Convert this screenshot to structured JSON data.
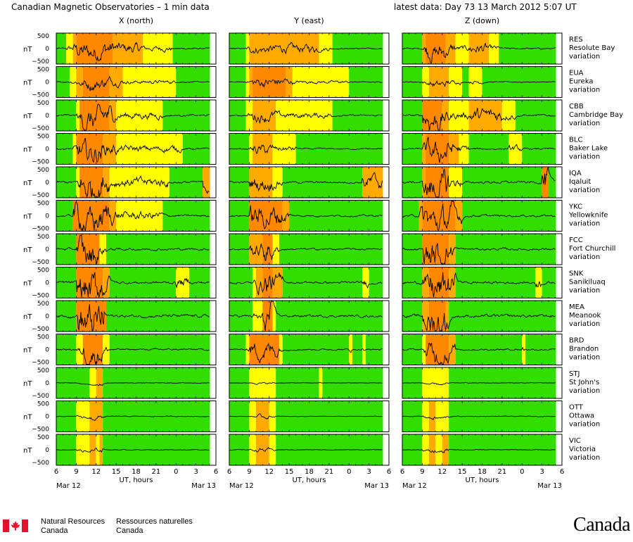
{
  "header": {
    "title": "Canadian Magnetic Observatories – 1 min data",
    "latest": "latest data: Day  73   13 March 2012  5:07 UT"
  },
  "chart_data": {
    "type": "line",
    "column_titles": [
      "X (north)",
      "Y (east)",
      "Z (down)"
    ],
    "ylabel": "nT",
    "y_ticks": [
      "500",
      "0",
      "−500"
    ],
    "x_ticks": [
      "6",
      "9",
      "12",
      "15",
      "18",
      "21",
      "0",
      "3",
      "6"
    ],
    "x_range_hours": [
      6,
      30
    ],
    "data_end_hour": 29.1,
    "xlabel": "UT, hours",
    "date_start": "Mar 12",
    "date_end": "Mar 13",
    "activity_colors": {
      "quiet": "#33dd00",
      "unsettled": "#ffff00",
      "active": "#ffaa00",
      "storm": "#ff8800"
    },
    "stations": [
      {
        "code": "RES",
        "name": "Resolute Bay",
        "suffix": "variation",
        "amp": 0.45,
        "x": [
          [
            6,
            "quiet"
          ],
          [
            7.5,
            "unsettled"
          ],
          [
            8.5,
            "active"
          ],
          [
            9,
            "storm"
          ],
          [
            14.5,
            "active"
          ],
          [
            19,
            "unsettled"
          ],
          [
            23.5,
            "quiet"
          ]
        ],
        "y": [
          [
            6,
            "quiet"
          ],
          [
            8.5,
            "unsettled"
          ],
          [
            9,
            "active"
          ],
          [
            19.5,
            "unsettled"
          ],
          [
            21.5,
            "quiet"
          ]
        ],
        "z": [
          [
            6,
            "quiet"
          ],
          [
            9,
            "active"
          ],
          [
            9.5,
            "storm"
          ],
          [
            12.5,
            "active"
          ],
          [
            14,
            "unsettled"
          ],
          [
            16,
            "active"
          ],
          [
            19,
            "unsettled"
          ],
          [
            20.5,
            "quiet"
          ]
        ]
      },
      {
        "code": "EUA",
        "name": "Eureka",
        "suffix": "variation",
        "amp": 0.3,
        "x": [
          [
            6,
            "quiet"
          ],
          [
            8,
            "unsettled"
          ],
          [
            9,
            "active"
          ],
          [
            10,
            "storm"
          ],
          [
            14,
            "active"
          ],
          [
            16,
            "unsettled"
          ],
          [
            24,
            "quiet"
          ]
        ],
        "y": [
          [
            6,
            "quiet"
          ],
          [
            8.5,
            "unsettled"
          ],
          [
            9,
            "active"
          ],
          [
            9.5,
            "storm"
          ],
          [
            14.5,
            "active"
          ],
          [
            15.5,
            "unsettled"
          ],
          [
            24,
            "quiet"
          ]
        ],
        "z": [
          [
            6,
            "quiet"
          ],
          [
            9,
            "unsettled"
          ],
          [
            10,
            "active"
          ],
          [
            13,
            "unsettled"
          ],
          [
            15,
            "quiet"
          ],
          [
            16,
            "unsettled"
          ],
          [
            18,
            "quiet"
          ]
        ]
      },
      {
        "code": "CBB",
        "name": "Cambridge Bay",
        "suffix": "variation",
        "amp": 0.6,
        "x": [
          [
            6,
            "quiet"
          ],
          [
            9,
            "unsettled"
          ],
          [
            9.5,
            "storm"
          ],
          [
            14,
            "active"
          ],
          [
            15,
            "unsettled"
          ],
          [
            22,
            "quiet"
          ]
        ],
        "y": [
          [
            6,
            "quiet"
          ],
          [
            8.5,
            "unsettled"
          ],
          [
            9.5,
            "active"
          ],
          [
            13,
            "unsettled"
          ],
          [
            21.5,
            "quiet"
          ]
        ],
        "z": [
          [
            6,
            "quiet"
          ],
          [
            9,
            "storm"
          ],
          [
            12,
            "active"
          ],
          [
            13,
            "unsettled"
          ],
          [
            16,
            "active"
          ],
          [
            21,
            "unsettled"
          ],
          [
            23,
            "quiet"
          ]
        ]
      },
      {
        "code": "BLC",
        "name": "Baker Lake",
        "suffix": "variation",
        "amp": 0.55,
        "x": [
          [
            6,
            "quiet"
          ],
          [
            8.5,
            "unsettled"
          ],
          [
            9,
            "storm"
          ],
          [
            13,
            "active"
          ],
          [
            15,
            "unsettled"
          ],
          [
            25,
            "quiet"
          ]
        ],
        "y": [
          [
            6,
            "quiet"
          ],
          [
            9,
            "unsettled"
          ],
          [
            9.5,
            "active"
          ],
          [
            12.5,
            "unsettled"
          ],
          [
            16,
            "quiet"
          ]
        ],
        "z": [
          [
            6,
            "quiet"
          ],
          [
            9,
            "active"
          ],
          [
            9.5,
            "storm"
          ],
          [
            13,
            "active"
          ],
          [
            14.5,
            "unsettled"
          ],
          [
            16,
            "quiet"
          ],
          [
            22,
            "unsettled"
          ],
          [
            24,
            "quiet"
          ]
        ]
      },
      {
        "code": "IQA",
        "name": "Iqaluit",
        "suffix": "variation",
        "amp": 0.8,
        "x": [
          [
            6,
            "quiet"
          ],
          [
            9,
            "unsettled"
          ],
          [
            9.5,
            "storm"
          ],
          [
            13,
            "active"
          ],
          [
            14,
            "unsettled"
          ],
          [
            23,
            "quiet"
          ],
          [
            28,
            "active"
          ]
        ],
        "y": [
          [
            6,
            "quiet"
          ],
          [
            9,
            "active"
          ],
          [
            12.5,
            "unsettled"
          ],
          [
            14,
            "quiet"
          ],
          [
            26,
            "active"
          ]
        ],
        "z": [
          [
            6,
            "quiet"
          ],
          [
            9,
            "active"
          ],
          [
            9.5,
            "storm"
          ],
          [
            13,
            "unsettled"
          ],
          [
            15,
            "quiet"
          ],
          [
            27,
            "storm"
          ],
          [
            28,
            "quiet"
          ]
        ]
      },
      {
        "code": "YKC",
        "name": "Yellowknife",
        "suffix": "variation",
        "amp": 0.7,
        "x": [
          [
            6,
            "quiet"
          ],
          [
            8.5,
            "storm"
          ],
          [
            14,
            "active"
          ],
          [
            15,
            "unsettled"
          ],
          [
            22,
            "quiet"
          ]
        ],
        "y": [
          [
            6,
            "quiet"
          ],
          [
            9,
            "storm"
          ],
          [
            14,
            "active"
          ],
          [
            15,
            "quiet"
          ]
        ],
        "z": [
          [
            6,
            "quiet"
          ],
          [
            8.5,
            "active"
          ],
          [
            9,
            "storm"
          ],
          [
            14,
            "active"
          ],
          [
            15,
            "quiet"
          ]
        ]
      },
      {
        "code": "FCC",
        "name": "Fort Churchill",
        "suffix": "variation",
        "amp": 0.75,
        "x": [
          [
            6,
            "quiet"
          ],
          [
            9,
            "storm"
          ],
          [
            12.5,
            "unsettled"
          ],
          [
            13.5,
            "quiet"
          ]
        ],
        "y": [
          [
            6,
            "quiet"
          ],
          [
            9,
            "active"
          ],
          [
            11,
            "storm"
          ],
          [
            12.5,
            "unsettled"
          ],
          [
            13.5,
            "quiet"
          ]
        ],
        "z": [
          [
            6,
            "quiet"
          ],
          [
            9,
            "storm"
          ],
          [
            13,
            "active"
          ],
          [
            14,
            "quiet"
          ]
        ]
      },
      {
        "code": "SNK",
        "name": "Sanikiluaq",
        "suffix": "variation",
        "amp": 0.85,
        "x": [
          [
            6,
            "quiet"
          ],
          [
            9,
            "storm"
          ],
          [
            13,
            "active"
          ],
          [
            14,
            "quiet"
          ],
          [
            24,
            "unsettled"
          ],
          [
            26,
            "quiet"
          ]
        ],
        "y": [
          [
            6,
            "quiet"
          ],
          [
            9.5,
            "unsettled"
          ],
          [
            10,
            "active"
          ],
          [
            11,
            "storm"
          ],
          [
            12.5,
            "active"
          ],
          [
            14,
            "quiet"
          ],
          [
            26,
            "unsettled"
          ],
          [
            27,
            "quiet"
          ]
        ],
        "z": [
          [
            6,
            "quiet"
          ],
          [
            9,
            "active"
          ],
          [
            10,
            "storm"
          ],
          [
            13,
            "active"
          ],
          [
            14,
            "quiet"
          ],
          [
            26,
            "unsettled"
          ],
          [
            27,
            "quiet"
          ]
        ]
      },
      {
        "code": "MEA",
        "name": "Meanook",
        "suffix": "variation",
        "amp": 0.95,
        "x": [
          [
            6,
            "quiet"
          ],
          [
            9,
            "storm"
          ],
          [
            13.5,
            "quiet"
          ]
        ],
        "y": [
          [
            6,
            "quiet"
          ],
          [
            9.5,
            "unsettled"
          ],
          [
            11,
            "storm"
          ],
          [
            12.5,
            "unsettled"
          ],
          [
            13,
            "quiet"
          ]
        ],
        "z": [
          [
            6,
            "quiet"
          ],
          [
            9,
            "active"
          ],
          [
            10,
            "storm"
          ],
          [
            12.5,
            "active"
          ],
          [
            13,
            "quiet"
          ]
        ]
      },
      {
        "code": "BRD",
        "name": "Brandon",
        "suffix": "variation",
        "amp": 0.55,
        "x": [
          [
            6,
            "quiet"
          ],
          [
            9,
            "unsettled"
          ],
          [
            10,
            "storm"
          ],
          [
            13,
            "unsettled"
          ],
          [
            14,
            "quiet"
          ]
        ],
        "y": [
          [
            6,
            "quiet"
          ],
          [
            8.5,
            "unsettled"
          ],
          [
            9,
            "storm"
          ],
          [
            13.5,
            "unsettled"
          ],
          [
            14,
            "quiet"
          ],
          [
            24,
            "unsettled"
          ],
          [
            24.5,
            "quiet"
          ],
          [
            26,
            "unsettled"
          ],
          [
            26.5,
            "quiet"
          ]
        ],
        "z": [
          [
            6,
            "quiet"
          ],
          [
            9,
            "unsettled"
          ],
          [
            9.5,
            "storm"
          ],
          [
            13,
            "active"
          ],
          [
            14,
            "quiet"
          ],
          [
            24,
            "unsettled"
          ],
          [
            24.5,
            "quiet"
          ]
        ]
      },
      {
        "code": "STJ",
        "name": "St John's",
        "suffix": "variation",
        "amp": 0.18,
        "x": [
          [
            6,
            "quiet"
          ],
          [
            11,
            "unsettled"
          ],
          [
            12,
            "active"
          ],
          [
            13,
            "quiet"
          ]
        ],
        "y": [
          [
            6,
            "quiet"
          ],
          [
            9,
            "unsettled"
          ],
          [
            13,
            "quiet"
          ],
          [
            19.5,
            "unsettled"
          ],
          [
            20,
            "quiet"
          ]
        ],
        "z": [
          [
            6,
            "quiet"
          ],
          [
            9,
            "unsettled"
          ],
          [
            13,
            "quiet"
          ]
        ]
      },
      {
        "code": "OTT",
        "name": "Ottawa",
        "suffix": "variation",
        "amp": 0.2,
        "x": [
          [
            6,
            "quiet"
          ],
          [
            9,
            "unsettled"
          ],
          [
            11,
            "active"
          ],
          [
            13,
            "quiet"
          ]
        ],
        "y": [
          [
            6,
            "quiet"
          ],
          [
            9,
            "unsettled"
          ],
          [
            10,
            "active"
          ],
          [
            12,
            "unsettled"
          ],
          [
            13,
            "quiet"
          ]
        ],
        "z": [
          [
            6,
            "quiet"
          ],
          [
            9,
            "unsettled"
          ],
          [
            10,
            "active"
          ],
          [
            11,
            "unsettled"
          ],
          [
            13,
            "quiet"
          ]
        ]
      },
      {
        "code": "VIC",
        "name": "Victoria",
        "suffix": "variation",
        "amp": 0.22,
        "x": [
          [
            6,
            "quiet"
          ],
          [
            9,
            "unsettled"
          ],
          [
            11,
            "active"
          ],
          [
            12,
            "unsettled"
          ],
          [
            12.5,
            "active"
          ],
          [
            13,
            "quiet"
          ]
        ],
        "y": [
          [
            6,
            "quiet"
          ],
          [
            9,
            "unsettled"
          ],
          [
            10,
            "active"
          ],
          [
            12,
            "unsettled"
          ],
          [
            13,
            "quiet"
          ]
        ],
        "z": [
          [
            6,
            "quiet"
          ],
          [
            9,
            "unsettled"
          ],
          [
            10,
            "active"
          ],
          [
            11,
            "unsettled"
          ],
          [
            12,
            "active"
          ],
          [
            13,
            "quiet"
          ]
        ]
      }
    ]
  },
  "footer": {
    "nrcan_en_1": "Natural Resources",
    "nrcan_en_2": "Canada",
    "nrcan_fr_1": "Ressources naturelles",
    "nrcan_fr_2": "Canada",
    "wordmark": "Canada"
  }
}
